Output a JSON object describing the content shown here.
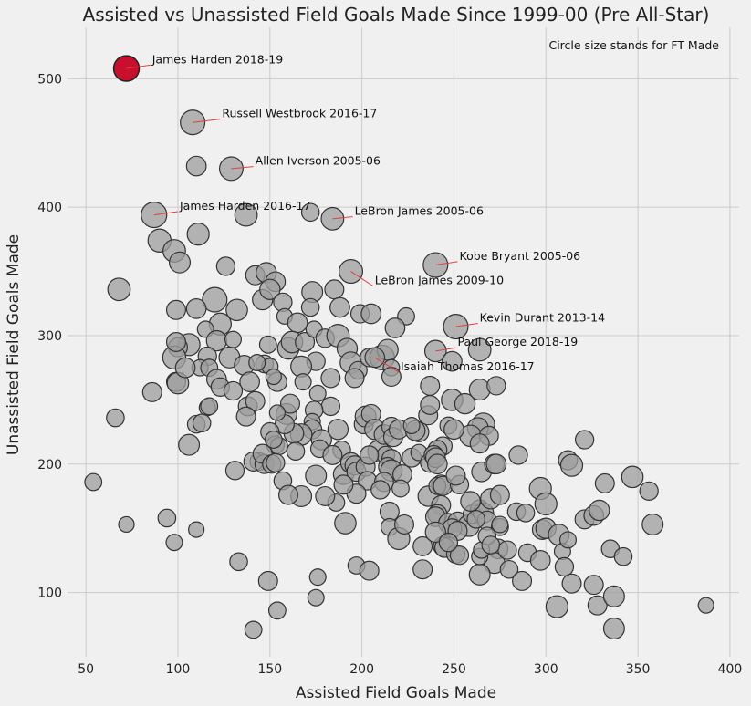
{
  "chart_data": {
    "type": "scatter",
    "title": "Assisted vs Unassisted Field Goals Made Since 1999-00 (Pre All-Star)",
    "xlabel": "Assisted Field Goals Made",
    "ylabel": "Unassisted Field Goals Made",
    "note": "Circle size stands for FT Made",
    "xlim": [
      40,
      405
    ],
    "ylim": [
      50,
      540
    ],
    "xticks": [
      50,
      100,
      150,
      200,
      250,
      300,
      350,
      400
    ],
    "yticks": [
      100,
      200,
      300,
      400,
      500
    ],
    "grid": true,
    "colors": {
      "highlight": "#c8102e",
      "point": "#9e9e9e",
      "leader": "#e04040"
    },
    "highlight": {
      "label": "James Harden 2018-19",
      "x": 72,
      "y": 508,
      "ft": 270
    },
    "annotations": [
      {
        "label": "James Harden 2018-19",
        "x": 72,
        "y": 508,
        "tx": 86,
        "ty": 512
      },
      {
        "label": "Russell Westbrook 2016-17",
        "x": 108,
        "y": 466,
        "tx": 124,
        "ty": 470
      },
      {
        "label": "Allen Iverson 2005-06",
        "x": 129,
        "y": 430,
        "tx": 142,
        "ty": 433
      },
      {
        "label": "James Harden 2016-17",
        "x": 87,
        "y": 394,
        "tx": 101,
        "ty": 398
      },
      {
        "label": "LeBron James 2005-06",
        "x": 184,
        "y": 391,
        "tx": 196,
        "ty": 394
      },
      {
        "label": "Kobe Bryant 2005-06",
        "x": 240,
        "y": 355,
        "tx": 253,
        "ty": 359
      },
      {
        "label": "LeBron James 2009-10",
        "x": 194,
        "y": 350,
        "tx": 207,
        "ty": 340
      },
      {
        "label": "Kevin Durant 2013-14",
        "x": 251,
        "y": 307,
        "tx": 264,
        "ty": 311
      },
      {
        "label": "Paul George 2018-19",
        "x": 240,
        "y": 288,
        "tx": 252,
        "ty": 292
      },
      {
        "label": "Isaiah Thomas 2016-17",
        "x": 207,
        "y": 283,
        "tx": 221,
        "ty": 273
      }
    ],
    "points": [
      [
        72,
        508,
        270
      ],
      [
        108,
        466,
        250
      ],
      [
        129,
        430,
        230
      ],
      [
        110,
        432,
        160
      ],
      [
        87,
        394,
        270
      ],
      [
        137,
        394,
        210
      ],
      [
        184,
        391,
        210
      ],
      [
        172,
        396,
        130
      ],
      [
        90,
        374,
        220
      ],
      [
        111,
        379,
        200
      ],
      [
        98,
        366,
        210
      ],
      [
        101,
        357,
        180
      ],
      [
        126,
        354,
        140
      ],
      [
        68,
        336,
        210
      ],
      [
        194,
        350,
        230
      ],
      [
        240,
        355,
        250
      ],
      [
        142,
        347,
        150
      ],
      [
        148,
        349,
        170
      ],
      [
        153,
        342,
        160
      ],
      [
        120,
        328,
        250
      ],
      [
        132,
        320,
        190
      ],
      [
        99,
        320,
        150
      ],
      [
        110,
        321,
        160
      ],
      [
        146,
        328,
        170
      ],
      [
        150,
        336,
        170
      ],
      [
        157,
        326,
        140
      ],
      [
        173,
        334,
        180
      ],
      [
        185,
        336,
        150
      ],
      [
        188,
        322,
        160
      ],
      [
        199,
        317,
        140
      ],
      [
        205,
        317,
        160
      ],
      [
        224,
        315,
        120
      ],
      [
        158,
        315,
        100
      ],
      [
        165,
        310,
        160
      ],
      [
        172,
        322,
        130
      ],
      [
        123,
        309,
        200
      ],
      [
        115,
        305,
        110
      ],
      [
        106,
        293,
        200
      ],
      [
        100,
        291,
        150
      ],
      [
        121,
        296,
        170
      ],
      [
        130,
        297,
        110
      ],
      [
        116,
        284,
        140
      ],
      [
        128,
        283,
        180
      ],
      [
        98,
        283,
        220
      ],
      [
        99,
        295,
        150
      ],
      [
        112,
        275,
        110
      ],
      [
        117,
        275,
        120
      ],
      [
        136,
        277,
        160
      ],
      [
        147,
        278,
        130
      ],
      [
        150,
        276,
        110
      ],
      [
        160,
        290,
        190
      ],
      [
        162,
        295,
        190
      ],
      [
        169,
        295,
        150
      ],
      [
        174,
        305,
        110
      ],
      [
        180,
        298,
        140
      ],
      [
        187,
        300,
        210
      ],
      [
        192,
        290,
        170
      ],
      [
        194,
        279,
        190
      ],
      [
        198,
        273,
        130
      ],
      [
        204,
        283,
        140
      ],
      [
        211,
        283,
        250
      ],
      [
        214,
        289,
        180
      ],
      [
        216,
        275,
        110
      ],
      [
        216,
        268,
        150
      ],
      [
        251,
        307,
        250
      ],
      [
        264,
        289,
        210
      ],
      [
        240,
        288,
        190
      ],
      [
        249,
        280,
        160
      ],
      [
        218,
        306,
        160
      ],
      [
        207,
        283,
        160
      ],
      [
        196,
        267,
        150
      ],
      [
        183,
        267,
        150
      ],
      [
        175,
        280,
        140
      ],
      [
        167,
        276,
        180
      ],
      [
        154,
        264,
        150
      ],
      [
        152,
        268,
        100
      ],
      [
        139,
        264,
        160
      ],
      [
        121,
        266,
        160
      ],
      [
        123,
        260,
        140
      ],
      [
        99,
        264,
        150
      ],
      [
        86,
        256,
        150
      ],
      [
        100,
        263,
        190
      ],
      [
        104,
        275,
        160
      ],
      [
        130,
        257,
        140
      ],
      [
        138,
        245,
        150
      ],
      [
        142,
        249,
        150
      ],
      [
        116,
        244,
        110
      ],
      [
        117,
        245,
        120
      ],
      [
        137,
        237,
        150
      ],
      [
        159,
        239,
        180
      ],
      [
        161,
        247,
        150
      ],
      [
        183,
        245,
        140
      ],
      [
        176,
        255,
        110
      ],
      [
        174,
        242,
        130
      ],
      [
        173,
        233,
        110
      ],
      [
        173,
        227,
        150
      ],
      [
        167,
        223,
        190
      ],
      [
        163,
        224,
        160
      ],
      [
        158,
        231,
        150
      ],
      [
        154,
        240,
        100
      ],
      [
        150,
        225,
        140
      ],
      [
        153,
        215,
        130
      ],
      [
        155,
        214,
        120
      ],
      [
        164,
        210,
        130
      ],
      [
        178,
        219,
        170
      ],
      [
        177,
        212,
        130
      ],
      [
        187,
        227,
        170
      ],
      [
        189,
        211,
        130
      ],
      [
        184,
        207,
        150
      ],
      [
        190,
        192,
        170
      ],
      [
        194,
        201,
        170
      ],
      [
        196,
        199,
        150
      ],
      [
        197,
        194,
        150
      ],
      [
        202,
        198,
        150
      ],
      [
        203,
        187,
        140
      ],
      [
        197,
        177,
        150
      ],
      [
        186,
        170,
        120
      ],
      [
        191,
        154,
        190
      ],
      [
        197,
        121,
        120
      ],
      [
        204,
        117,
        150
      ],
      [
        201,
        231,
        150
      ],
      [
        202,
        237,
        180
      ],
      [
        205,
        239,
        150
      ],
      [
        207,
        227,
        170
      ],
      [
        209,
        210,
        190
      ],
      [
        213,
        207,
        130
      ],
      [
        212,
        223,
        160
      ],
      [
        216,
        229,
        150
      ],
      [
        217,
        221,
        150
      ],
      [
        220,
        227,
        150
      ],
      [
        216,
        204,
        150
      ],
      [
        214,
        198,
        140
      ],
      [
        216,
        195,
        190
      ],
      [
        212,
        186,
        150
      ],
      [
        210,
        180,
        140
      ],
      [
        215,
        163,
        150
      ],
      [
        215,
        151,
        120
      ],
      [
        220,
        142,
        200
      ],
      [
        223,
        153,
        150
      ],
      [
        222,
        192,
        150
      ],
      [
        221,
        181,
        120
      ],
      [
        227,
        205,
        150
      ],
      [
        231,
        209,
        110
      ],
      [
        231,
        225,
        160
      ],
      [
        229,
        226,
        160
      ],
      [
        227,
        230,
        110
      ],
      [
        236,
        238,
        150
      ],
      [
        237,
        246,
        150
      ],
      [
        237,
        261,
        150
      ],
      [
        249,
        250,
        190
      ],
      [
        256,
        247,
        170
      ],
      [
        264,
        258,
        180
      ],
      [
        273,
        261,
        140
      ],
      [
        266,
        231,
        210
      ],
      [
        263,
        228,
        180
      ],
      [
        259,
        222,
        190
      ],
      [
        269,
        222,
        150
      ],
      [
        264,
        216,
        150
      ],
      [
        247,
        230,
        120
      ],
      [
        250,
        227,
        160
      ],
      [
        244,
        214,
        140
      ],
      [
        241,
        211,
        150
      ],
      [
        237,
        201,
        150
      ],
      [
        239,
        207,
        150
      ],
      [
        240,
        205,
        160
      ],
      [
        236,
        175,
        170
      ],
      [
        243,
        184,
        150
      ],
      [
        241,
        183,
        120
      ],
      [
        244,
        183,
        150
      ],
      [
        243,
        168,
        150
      ],
      [
        241,
        161,
        150
      ],
      [
        240,
        159,
        160
      ],
      [
        247,
        154,
        160
      ],
      [
        252,
        155,
        160
      ],
      [
        258,
        152,
        190
      ],
      [
        249,
        150,
        150
      ],
      [
        252,
        148,
        150
      ],
      [
        260,
        161,
        140
      ],
      [
        264,
        165,
        140
      ],
      [
        266,
        162,
        170
      ],
      [
        268,
        156,
        150
      ],
      [
        262,
        157,
        130
      ],
      [
        259,
        171,
        160
      ],
      [
        253,
        184,
        140
      ],
      [
        251,
        191,
        150
      ],
      [
        265,
        194,
        160
      ],
      [
        270,
        173,
        170
      ],
      [
        272,
        200,
        160
      ],
      [
        273,
        200,
        160
      ],
      [
        275,
        176,
        150
      ],
      [
        285,
        207,
        140
      ],
      [
        275,
        151,
        120
      ],
      [
        275,
        153,
        110
      ],
      [
        274,
        134,
        160
      ],
      [
        272,
        123,
        180
      ],
      [
        279,
        133,
        140
      ],
      [
        280,
        118,
        130
      ],
      [
        264,
        114,
        180
      ],
      [
        264,
        128,
        110
      ],
      [
        265,
        133,
        110
      ],
      [
        268,
        144,
        130
      ],
      [
        270,
        137,
        130
      ],
      [
        284,
        163,
        130
      ],
      [
        287,
        109,
        150
      ],
      [
        289,
        162,
        130
      ],
      [
        290,
        131,
        130
      ],
      [
        297,
        181,
        200
      ],
      [
        298,
        149,
        160
      ],
      [
        300,
        150,
        170
      ],
      [
        300,
        169,
        200
      ],
      [
        297,
        125,
        160
      ],
      [
        307,
        145,
        180
      ],
      [
        306,
        89,
        200
      ],
      [
        309,
        132,
        110
      ],
      [
        310,
        120,
        140
      ],
      [
        312,
        141,
        110
      ],
      [
        312,
        203,
        150
      ],
      [
        314,
        199,
        200
      ],
      [
        314,
        107,
        150
      ],
      [
        321,
        219,
        140
      ],
      [
        321,
        157,
        150
      ],
      [
        326,
        106,
        150
      ],
      [
        326,
        160,
        160
      ],
      [
        328,
        90,
        150
      ],
      [
        329,
        164,
        170
      ],
      [
        332,
        185,
        150
      ],
      [
        335,
        134,
        130
      ],
      [
        337,
        97,
        180
      ],
      [
        337,
        72,
        180
      ],
      [
        342,
        128,
        130
      ],
      [
        347,
        190,
        190
      ],
      [
        356,
        179,
        140
      ],
      [
        358,
        153,
        180
      ],
      [
        387,
        90,
        100
      ],
      [
        54,
        186,
        120
      ],
      [
        66,
        236,
        130
      ],
      [
        72,
        153,
        100
      ],
      [
        94,
        158,
        130
      ],
      [
        98,
        139,
        110
      ],
      [
        110,
        149,
        100
      ],
      [
        110,
        231,
        130
      ],
      [
        113,
        232,
        130
      ],
      [
        106,
        215,
        180
      ],
      [
        131,
        195,
        140
      ],
      [
        133,
        124,
        130
      ],
      [
        141,
        71,
        120
      ],
      [
        149,
        109,
        150
      ],
      [
        154,
        86,
        120
      ],
      [
        144,
        202,
        130
      ],
      [
        141,
        202,
        150
      ],
      [
        147,
        200,
        150
      ],
      [
        146,
        208,
        150
      ],
      [
        151,
        200,
        140
      ],
      [
        153,
        201,
        140
      ],
      [
        149,
        293,
        120
      ],
      [
        143,
        279,
        110
      ],
      [
        152,
        219,
        120
      ],
      [
        168,
        264,
        110
      ],
      [
        180,
        175,
        150
      ],
      [
        167,
        175,
        180
      ],
      [
        175,
        191,
        180
      ],
      [
        175,
        96,
        110
      ],
      [
        176,
        112,
        110
      ],
      [
        157,
        187,
        130
      ],
      [
        160,
        176,
        150
      ],
      [
        190,
        184,
        150
      ],
      [
        204,
        207,
        140
      ],
      [
        244,
        136,
        150
      ],
      [
        245,
        135,
        160
      ],
      [
        251,
        130,
        140
      ],
      [
        253,
        129,
        140
      ],
      [
        233,
        136,
        150
      ],
      [
        233,
        118,
        150
      ],
      [
        240,
        147,
        170
      ],
      [
        241,
        200,
        160
      ],
      [
        247,
        139,
        140
      ]
    ]
  }
}
